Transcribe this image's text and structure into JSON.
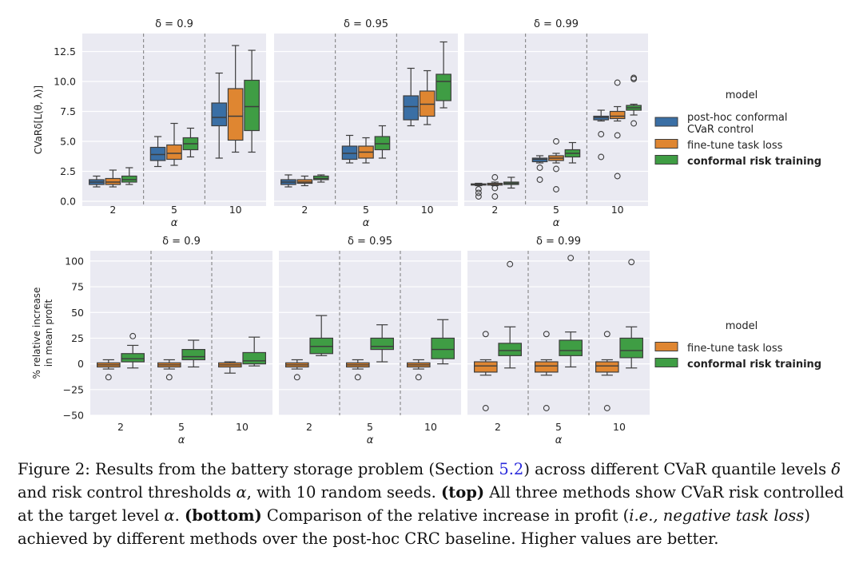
{
  "chart_data": [
    {
      "type": "boxplot",
      "panel": "top",
      "ylabel": "CVaRδ[L(θ, λ)]",
      "ylim": [
        -0.4,
        14.0
      ],
      "yticks": [
        0.0,
        2.5,
        5.0,
        7.5,
        10.0,
        12.5
      ],
      "ytick_labels": [
        "0.0",
        "2.5",
        "5.0",
        "7.5",
        "10.0",
        "12.5"
      ],
      "xlabel": "α",
      "categories": [
        "2",
        "5",
        "10"
      ],
      "legend": {
        "title": "model",
        "entries": [
          "post-hoc conformal CVaR control",
          "fine-tune task loss",
          "conformal risk training"
        ],
        "lines": [
          [
            "post-hoc conformal",
            "CVaR control"
          ],
          [
            "fine-tune task loss"
          ],
          [
            "conformal risk training"
          ]
        ],
        "bold": [
          false,
          false,
          true
        ]
      },
      "series_colors": [
        "#3a6fa5",
        "#df8631",
        "#3f9d44"
      ],
      "facets": [
        {
          "title": "δ = 0.9",
          "groups": [
            [
              {
                "whislo": 1.2,
                "q1": 1.4,
                "med": 1.6,
                "q3": 1.8,
                "whishi": 2.1,
                "fliers": []
              },
              {
                "whislo": 1.2,
                "q1": 1.4,
                "med": 1.6,
                "q3": 1.9,
                "whishi": 2.6,
                "fliers": []
              },
              {
                "whislo": 1.4,
                "q1": 1.6,
                "med": 1.8,
                "q3": 2.1,
                "whishi": 2.8,
                "fliers": []
              }
            ],
            [
              {
                "whislo": 2.9,
                "q1": 3.4,
                "med": 3.9,
                "q3": 4.5,
                "whishi": 5.4,
                "fliers": []
              },
              {
                "whislo": 3.0,
                "q1": 3.5,
                "med": 4.0,
                "q3": 4.7,
                "whishi": 6.5,
                "fliers": []
              },
              {
                "whislo": 3.7,
                "q1": 4.3,
                "med": 4.8,
                "q3": 5.3,
                "whishi": 6.1,
                "fliers": []
              }
            ],
            [
              {
                "whislo": 3.6,
                "q1": 6.3,
                "med": 7.0,
                "q3": 8.2,
                "whishi": 10.7,
                "fliers": []
              },
              {
                "whislo": 4.1,
                "q1": 5.1,
                "med": 7.1,
                "q3": 9.4,
                "whishi": 13.0,
                "fliers": []
              },
              {
                "whislo": 4.1,
                "q1": 5.9,
                "med": 7.9,
                "q3": 10.1,
                "whishi": 12.6,
                "fliers": []
              }
            ]
          ]
        },
        {
          "title": "δ = 0.95",
          "groups": [
            [
              {
                "whislo": 1.2,
                "q1": 1.4,
                "med": 1.6,
                "q3": 1.8,
                "whishi": 2.2,
                "fliers": []
              },
              {
                "whislo": 1.3,
                "q1": 1.5,
                "med": 1.6,
                "q3": 1.8,
                "whishi": 2.1,
                "fliers": []
              },
              {
                "whislo": 1.6,
                "q1": 1.8,
                "med": 1.9,
                "q3": 2.1,
                "whishi": 2.2,
                "fliers": []
              }
            ],
            [
              {
                "whislo": 3.2,
                "q1": 3.5,
                "med": 4.0,
                "q3": 4.6,
                "whishi": 5.5,
                "fliers": []
              },
              {
                "whislo": 3.2,
                "q1": 3.6,
                "med": 4.1,
                "q3": 4.6,
                "whishi": 5.3,
                "fliers": []
              },
              {
                "whislo": 3.6,
                "q1": 4.3,
                "med": 4.8,
                "q3": 5.4,
                "whishi": 6.3,
                "fliers": []
              }
            ],
            [
              {
                "whislo": 6.3,
                "q1": 6.8,
                "med": 7.9,
                "q3": 8.8,
                "whishi": 11.1,
                "fliers": []
              },
              {
                "whislo": 6.4,
                "q1": 7.1,
                "med": 8.1,
                "q3": 9.2,
                "whishi": 10.9,
                "fliers": []
              },
              {
                "whislo": 7.8,
                "q1": 8.4,
                "med": 10.0,
                "q3": 10.6,
                "whishi": 13.3,
                "fliers": []
              }
            ]
          ]
        },
        {
          "title": "δ = 0.99",
          "groups": [
            [
              {
                "whislo": 1.3,
                "q1": 1.35,
                "med": 1.4,
                "q3": 1.45,
                "whishi": 1.5,
                "fliers": [
                  0.7,
                  1.0,
                  0.4
                ]
              },
              {
                "whislo": 1.3,
                "q1": 1.35,
                "med": 1.4,
                "q3": 1.5,
                "whishi": 1.6,
                "fliers": [
                  2.0,
                  1.1,
                  0.4
                ]
              },
              {
                "whislo": 1.1,
                "q1": 1.4,
                "med": 1.5,
                "q3": 1.6,
                "whishi": 2.0,
                "fliers": []
              }
            ],
            [
              {
                "whislo": 3.2,
                "q1": 3.3,
                "med": 3.5,
                "q3": 3.6,
                "whishi": 3.8,
                "fliers": [
                  2.8,
                  1.8
                ]
              },
              {
                "whislo": 3.2,
                "q1": 3.4,
                "med": 3.6,
                "q3": 3.8,
                "whishi": 4.0,
                "fliers": [
                  5.0,
                  1.0,
                  2.7
                ]
              },
              {
                "whislo": 3.2,
                "q1": 3.7,
                "med": 4.0,
                "q3": 4.3,
                "whishi": 4.9,
                "fliers": []
              }
            ],
            [
              {
                "whislo": 6.7,
                "q1": 6.8,
                "med": 7.0,
                "q3": 7.1,
                "whishi": 7.6,
                "fliers": [
                  5.6,
                  3.7
                ]
              },
              {
                "whislo": 6.7,
                "q1": 6.9,
                "med": 7.1,
                "q3": 7.5,
                "whishi": 7.9,
                "fliers": [
                  9.9,
                  5.5,
                  2.1
                ]
              },
              {
                "whislo": 7.2,
                "q1": 7.6,
                "med": 7.8,
                "q3": 8.0,
                "whishi": 8.1,
                "fliers": [
                  10.2,
                  10.3,
                  6.5
                ]
              }
            ]
          ]
        }
      ]
    },
    {
      "type": "boxplot",
      "panel": "bottom",
      "ylabel_lines": [
        "% relative increase",
        "in mean profit"
      ],
      "ylim": [
        -50,
        110
      ],
      "yticks": [
        -50,
        -25,
        0,
        25,
        50,
        75,
        100
      ],
      "ytick_labels": [
        "−50",
        "−25",
        "0",
        "25",
        "50",
        "75",
        "100"
      ],
      "xlabel": "α",
      "categories": [
        "2",
        "5",
        "10"
      ],
      "legend": {
        "title": "model",
        "entries": [
          "fine-tune task loss",
          "conformal risk training"
        ],
        "bold": [
          false,
          true
        ]
      },
      "series_colors": [
        "#df8631",
        "#3f9d44"
      ],
      "facets": [
        {
          "title": "δ = 0.9",
          "groups": [
            [
              {
                "whislo": -5,
                "q1": -3,
                "med": -1,
                "q3": 1,
                "whishi": 4,
                "fliers": [
                  -13
                ]
              },
              {
                "whislo": -4,
                "q1": 2,
                "med": 5,
                "q3": 10,
                "whishi": 18,
                "fliers": [
                  27
                ]
              }
            ],
            [
              {
                "whislo": -5,
                "q1": -3,
                "med": -1,
                "q3": 1,
                "whishi": 4,
                "fliers": [
                  -13
                ]
              },
              {
                "whislo": -3,
                "q1": 4,
                "med": 7,
                "q3": 14,
                "whishi": 23,
                "fliers": []
              }
            ],
            [
              {
                "whislo": -9,
                "q1": -3,
                "med": -1,
                "q3": 1,
                "whishi": 2,
                "fliers": []
              },
              {
                "whislo": -2,
                "q1": 0,
                "med": 3,
                "q3": 11,
                "whishi": 26,
                "fliers": []
              }
            ]
          ]
        },
        {
          "title": "δ = 0.95",
          "groups": [
            [
              {
                "whislo": -5,
                "q1": -3,
                "med": -1,
                "q3": 1,
                "whishi": 4,
                "fliers": [
                  -13
                ]
              },
              {
                "whislo": 8,
                "q1": 10,
                "med": 17,
                "q3": 25,
                "whishi": 47,
                "fliers": []
              }
            ],
            [
              {
                "whislo": -5,
                "q1": -3,
                "med": -1,
                "q3": 1,
                "whishi": 4,
                "fliers": [
                  -13
                ]
              },
              {
                "whislo": 2,
                "q1": 14,
                "med": 17,
                "q3": 25,
                "whishi": 38,
                "fliers": []
              }
            ],
            [
              {
                "whislo": -5,
                "q1": -3,
                "med": -1,
                "q3": 1,
                "whishi": 4,
                "fliers": [
                  -13
                ]
              },
              {
                "whislo": 0,
                "q1": 5,
                "med": 14,
                "q3": 25,
                "whishi": 43,
                "fliers": []
              }
            ]
          ]
        },
        {
          "title": "δ = 0.99",
          "groups": [
            [
              {
                "whislo": -11,
                "q1": -8,
                "med": -2,
                "q3": 2,
                "whishi": 4,
                "fliers": [
                  29,
                  -43
                ]
              },
              {
                "whislo": -4,
                "q1": 8,
                "med": 13,
                "q3": 20,
                "whishi": 36,
                "fliers": [
                  97
                ]
              }
            ],
            [
              {
                "whislo": -11,
                "q1": -8,
                "med": -2,
                "q3": 2,
                "whishi": 4,
                "fliers": [
                  29,
                  -43
                ]
              },
              {
                "whislo": -3,
                "q1": 8,
                "med": 13,
                "q3": 23,
                "whishi": 31,
                "fliers": [
                  103
                ]
              }
            ],
            [
              {
                "whislo": -11,
                "q1": -8,
                "med": -2,
                "q3": 2,
                "whishi": 4,
                "fliers": [
                  29,
                  -43
                ]
              },
              {
                "whislo": -4,
                "q1": 6,
                "med": 13,
                "q3": 25,
                "whishi": 36,
                "fliers": [
                  99
                ]
              }
            ]
          ]
        }
      ]
    }
  ],
  "caption": {
    "prefix": "Figure 2: Results from the battery storage problem (Section ",
    "section_ref": "5.2",
    "after_ref": ") across different CVaR quantile levels ",
    "delta_symbol": "δ",
    "and_thresholds": " and risk control thresholds ",
    "alpha_symbol": "α",
    "seeds_text": ", with 10 random seeds. ",
    "top_label": "(top)",
    "top_text": " All three methods show CVaR risk controlled at the target level ",
    "alpha_symbol_2": "α",
    "period": ". ",
    "bottom_label": "(bottom)",
    "bottom_text": " Comparison of the relative increase in profit (",
    "italic_note": "i.e., negative task loss",
    "tail_text": ") achieved by different methods over the post-hoc CRC baseline. Higher values are better."
  }
}
